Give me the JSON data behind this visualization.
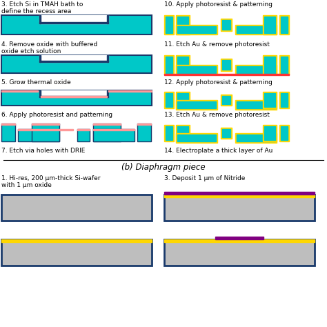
{
  "colors": {
    "cyan": "#00C8C8",
    "yellow": "#FFD700",
    "pink": "#FF9999",
    "dark_blue": "#1a3a6b",
    "gray": "#BEBEBE",
    "purple": "#800080",
    "red": "#FF3333",
    "white": "#FFFFFF",
    "black": "#000000"
  },
  "title_b": "(b) Diaphragm piece",
  "labels": {
    "step3_top": "3. Etch Si in TMAH bath to\ndefine the recess area",
    "step4_top": "4. Remove oxide with buffered\noxide etch solution",
    "step5_top": "5. Grow thermal oxide",
    "step6_top": "6. Apply photoresist and patterning",
    "step7_top": "7. Etch via holes with DRIE",
    "step10_top": "10. Apply photoresist & patterning",
    "step11_top": "11. Etch Au & remove photoresist",
    "step12_top": "12. Apply photoresist & patterning",
    "step13_top": "13. Etch Au & remove photoresist",
    "step14_top": "14. Electroplate a thick layer of Au",
    "step1_bot": "1. Hi-res, 200 μm-thick Si-wafer\nwith 1 μm oxide",
    "step3_bot": "3. Deposit 1 μm of Nitride"
  },
  "fontsize": 6.5
}
